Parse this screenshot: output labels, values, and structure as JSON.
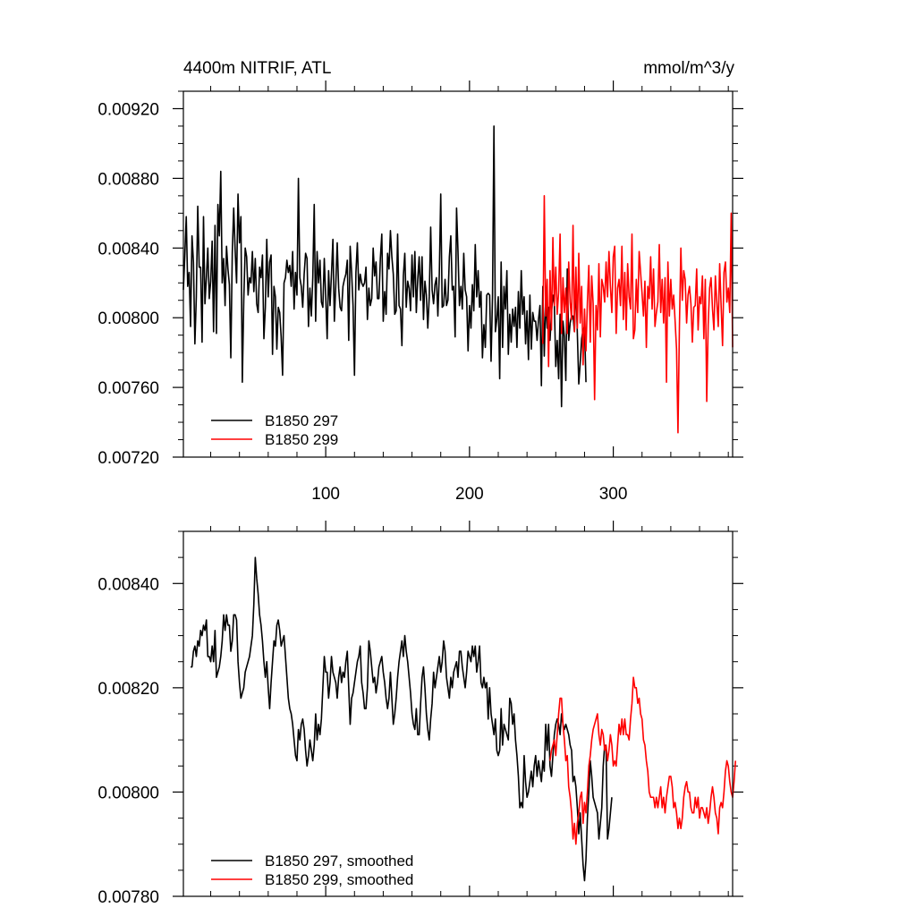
{
  "chart_data": [
    {
      "type": "line",
      "title_left": "4400m NITRIF, ATL",
      "title_right": "mmol/m^3/y",
      "xlabel": "",
      "ylabel": "",
      "xlim": [
        1,
        383
      ],
      "ylim": [
        0.0072,
        0.0093
      ],
      "xticks": [
        100,
        200,
        300
      ],
      "xtick_labels": [
        "100",
        "200",
        "300"
      ],
      "xtick_label_position": "top-of-bottom-axis-below",
      "yticks": [
        0.0072,
        0.0076,
        0.008,
        0.0084,
        0.0088,
        0.0092
      ],
      "ytick_labels": [
        "0.00720",
        "0.00760",
        "0.00800",
        "0.00840",
        "0.00880",
        "0.00920"
      ],
      "grid": false,
      "legend_position": "bottom-left",
      "series": [
        {
          "name": "B1850 297",
          "color": "#000000",
          "x_start": 1,
          "values": [
            0.00816,
            0.00836,
            0.00858,
            0.00818,
            0.00826,
            0.00795,
            0.00847,
            0.00832,
            0.00785,
            0.00812,
            0.00864,
            0.00829,
            0.00829,
            0.00786,
            0.00858,
            0.00808,
            0.00823,
            0.0084,
            0.00811,
            0.00821,
            0.00844,
            0.00792,
            0.00853,
            0.00791,
            0.00865,
            0.00847,
            0.00884,
            0.0082,
            0.00834,
            0.00807,
            0.00841,
            0.00828,
            0.00819,
            0.00777,
            0.00837,
            0.00863,
            0.00839,
            0.0082,
            0.00871,
            0.00843,
            0.00858,
            0.00763,
            0.0081,
            0.0084,
            0.00835,
            0.00813,
            0.00823,
            0.0082,
            0.00838,
            0.00815,
            0.00834,
            0.00808,
            0.00803,
            0.00829,
            0.00823,
            0.00836,
            0.00788,
            0.00806,
            0.00845,
            0.00812,
            0.00832,
            0.00836,
            0.00779,
            0.00818,
            0.00812,
            0.00782,
            0.00806,
            0.00803,
            0.00789,
            0.00767,
            0.0082,
            0.00823,
            0.00833,
            0.00826,
            0.0083,
            0.00818,
            0.00838,
            0.00805,
            0.00826,
            0.00813,
            0.0088,
            0.00823,
            0.00818,
            0.00806,
            0.00825,
            0.00837,
            0.00834,
            0.00795,
            0.00817,
            0.00801,
            0.00823,
            0.00865,
            0.00798,
            0.00838,
            0.0082,
            0.00833,
            0.00809,
            0.00806,
            0.00834,
            0.00812,
            0.00788,
            0.00827,
            0.00807,
            0.00825,
            0.00845,
            0.00798,
            0.00819,
            0.00843,
            0.00817,
            0.00806,
            0.00804,
            0.00818,
            0.00822,
            0.00825,
            0.00833,
            0.00787,
            0.00841,
            0.00826,
            0.00807,
            0.00767,
            0.00826,
            0.00843,
            0.00816,
            0.00825,
            0.0082,
            0.00818,
            0.0082,
            0.00829,
            0.00799,
            0.00817,
            0.00807,
            0.00811,
            0.0084,
            0.00824,
            0.00832,
            0.00811,
            0.00811,
            0.00834,
            0.00848,
            0.00798,
            0.00815,
            0.00802,
            0.00837,
            0.00828,
            0.0085,
            0.00835,
            0.00825,
            0.00802,
            0.00804,
            0.00848,
            0.00807,
            0.00805,
            0.00784,
            0.00824,
            0.00837,
            0.00806,
            0.00821,
            0.00817,
            0.00804,
            0.00836,
            0.00812,
            0.00838,
            0.00803,
            0.00822,
            0.00835,
            0.0081,
            0.00835,
            0.00799,
            0.00821,
            0.00813,
            0.00794,
            0.00812,
            0.00852,
            0.00816,
            0.00808,
            0.00819,
            0.00823,
            0.00801,
            0.00825,
            0.00871,
            0.00806,
            0.00807,
            0.00822,
            0.00807,
            0.0081,
            0.00835,
            0.00847,
            0.00816,
            0.00818,
            0.00789,
            0.00863,
            0.00838,
            0.00807,
            0.00818,
            0.00805,
            0.00837,
            0.00816,
            0.00812,
            0.00781,
            0.00807,
            0.00794,
            0.00819,
            0.00804,
            0.00842,
            0.00812,
            0.00827,
            0.00806,
            0.00815,
            0.00777,
            0.00796,
            0.00783,
            0.00813,
            0.00814,
            0.00813,
            0.00775,
            0.00812,
            0.0091,
            0.00792,
            0.00799,
            0.00812,
            0.00765,
            0.00832,
            0.00783,
            0.00818,
            0.00805,
            0.00827,
            0.00779,
            0.00802,
            0.00786,
            0.00805,
            0.00795,
            0.00806,
            0.00783,
            0.00815,
            0.00794,
            0.00827,
            0.00802,
            0.00812,
            0.00785,
            0.00804,
            0.00776,
            0.00813,
            0.00782,
            0.00803,
            0.00798,
            0.00798,
            0.00787,
            0.00799,
            0.00807,
            0.00761,
            0.00818,
            0.00778,
            0.00812,
            0.00794,
            0.00806,
            0.00787,
            0.00803,
            0.00813,
            0.00808,
            0.00772,
            0.00787,
            0.00765,
            0.00802,
            0.00749,
            0.00798,
            0.00789,
            0.00764,
            0.00828,
            0.00787,
            0.00797,
            0.00801,
            0.00801,
            0.00792,
            0.0082,
            0.00791,
            0.00762,
            0.00774,
            0.00788,
            0.00793,
            0.00795,
            0.00763
          ]
        },
        {
          "name": "B1850 299",
          "color": "#ff0000",
          "x_start": 251,
          "values": [
            0.00785,
            0.0087,
            0.00801,
            0.00822,
            0.00772,
            0.00827,
            0.00793,
            0.00846,
            0.00807,
            0.00829,
            0.00802,
            0.00815,
            0.00848,
            0.00791,
            0.00823,
            0.00803,
            0.00817,
            0.00791,
            0.00832,
            0.00809,
            0.00799,
            0.00853,
            0.00792,
            0.00829,
            0.00794,
            0.00837,
            0.00797,
            0.00818,
            0.00773,
            0.00805,
            0.00781,
            0.00809,
            0.0083,
            0.00786,
            0.00824,
            0.00808,
            0.00753,
            0.00807,
            0.00793,
            0.00831,
            0.00789,
            0.00822,
            0.00818,
            0.00809,
            0.00832,
            0.00812,
            0.00838,
            0.00818,
            0.00803,
            0.00835,
            0.00841,
            0.00791,
            0.00817,
            0.00822,
            0.00807,
            0.00841,
            0.00799,
            0.00826,
            0.00793,
            0.00831,
            0.00812,
            0.00805,
            0.00848,
            0.00788,
            0.00793,
            0.00822,
            0.00803,
            0.00838,
            0.00826,
            0.00814,
            0.00801,
            0.00821,
            0.00783,
            0.00818,
            0.00811,
            0.00835,
            0.00805,
            0.00828,
            0.00795,
            0.00803,
            0.00809,
            0.00842,
            0.00803,
            0.00822,
            0.00797,
            0.00823,
            0.00763,
            0.00832,
            0.00801,
            0.00822,
            0.00805,
            0.00813,
            0.00798,
            0.00782,
            0.00734,
            0.00795,
            0.0084,
            0.0081,
            0.00827,
            0.00822,
            0.00797,
            0.00813,
            0.00818,
            0.00808,
            0.00786,
            0.00806,
            0.00807,
            0.00828,
            0.00793,
            0.00812,
            0.00808,
            0.00824,
            0.00788,
            0.00822,
            0.00752,
            0.00796,
            0.00817,
            0.00823,
            0.00805,
            0.00793,
            0.00824,
            0.00809,
            0.00795,
            0.00831,
            0.00807,
            0.00784,
            0.00826,
            0.00832,
            0.00809,
            0.00817,
            0.00803,
            0.0086,
            0.00783
          ]
        }
      ]
    },
    {
      "type": "line",
      "title_left": "",
      "title_right": "",
      "xlabel": "",
      "ylabel": "",
      "xlim": [
        1,
        383
      ],
      "ylim": [
        0.0078,
        0.0085
      ],
      "xticks": [
        100,
        200,
        300
      ],
      "xtick_labels": [],
      "yticks": [
        0.0078,
        0.008,
        0.0082,
        0.0084
      ],
      "ytick_labels": [
        "0.00780",
        "0.00800",
        "0.00820",
        "0.00840"
      ],
      "grid": false,
      "legend_position": "bottom-left",
      "series": [
        {
          "name": "B1850 297, smoothed",
          "color": "#000000",
          "x_start": 6,
          "values": [
            0.00824,
            0.00824,
            0.00827,
            0.00828,
            0.00826,
            0.00829,
            0.00828,
            0.00831,
            0.0083,
            0.00832,
            0.00831,
            0.00833,
            0.00826,
            0.00826,
            0.00825,
            0.00828,
            0.00825,
            0.00831,
            0.00822,
            0.00823,
            0.00824,
            0.00826,
            0.00829,
            0.00834,
            0.00831,
            0.00834,
            0.00832,
            0.00832,
            0.00827,
            0.00829,
            0.00834,
            0.00834,
            0.00833,
            0.00825,
            0.00821,
            0.00818,
            0.00819,
            0.0082,
            0.00823,
            0.00824,
            0.00825,
            0.00826,
            0.00828,
            0.0083,
            0.00836,
            0.00845,
            0.00841,
            0.00838,
            0.00834,
            0.00832,
            0.00829,
            0.00825,
            0.00822,
            0.00825,
            0.0082,
            0.00816,
            0.00821,
            0.00825,
            0.00829,
            0.00828,
            0.00832,
            0.00833,
            0.00831,
            0.00828,
            0.00829,
            0.0083,
            0.00826,
            0.00822,
            0.00818,
            0.00816,
            0.00815,
            0.00813,
            0.0081,
            0.00807,
            0.00806,
            0.00812,
            0.0081,
            0.00813,
            0.00814,
            0.00812,
            0.00808,
            0.00805,
            0.00807,
            0.0081,
            0.00808,
            0.00806,
            0.00809,
            0.00815,
            0.0081,
            0.00813,
            0.00811,
            0.00814,
            0.0082,
            0.00826,
            0.00823,
            0.00823,
            0.00818,
            0.00821,
            0.00826,
            0.00823,
            0.00822,
            0.00821,
            0.00818,
            0.00822,
            0.00824,
            0.00821,
            0.00823,
            0.00822,
            0.00825,
            0.00827,
            0.0082,
            0.00813,
            0.00818,
            0.00819,
            0.00821,
            0.00823,
            0.00825,
            0.00826,
            0.00828,
            0.00821,
            0.00819,
            0.00816,
            0.00816,
            0.0082,
            0.00829,
            0.00827,
            0.00824,
            0.00821,
            0.00822,
            0.00819,
            0.00821,
            0.00824,
            0.00825,
            0.00826,
            0.00823,
            0.00821,
            0.00818,
            0.00816,
            0.00818,
            0.00823,
            0.00818,
            0.00813,
            0.00815,
            0.00818,
            0.00822,
            0.00825,
            0.00827,
            0.00829,
            0.00826,
            0.0083,
            0.00827,
            0.00825,
            0.00822,
            0.00819,
            0.00815,
            0.00813,
            0.00812,
            0.00816,
            0.00811,
            0.00811,
            0.00817,
            0.00822,
            0.00824,
            0.0082,
            0.00815,
            0.00812,
            0.0081,
            0.00814,
            0.00817,
            0.00823,
            0.0082,
            0.00822,
            0.00824,
            0.00826,
            0.00823,
            0.00825,
            0.00829,
            0.00827,
            0.00822,
            0.0082,
            0.00818,
            0.00822,
            0.0082,
            0.00823,
            0.00824,
            0.00825,
            0.00822,
            0.00827,
            0.00827,
            0.00824,
            0.00822,
            0.0082,
            0.00823,
            0.00827,
            0.00826,
            0.00825,
            0.00828,
            0.00826,
            0.00828,
            0.00823,
            0.00825,
            0.00828,
            0.00821,
            0.0082,
            0.00822,
            0.0082,
            0.00821,
            0.00814,
            0.0082,
            0.00815,
            0.00813,
            0.00811,
            0.00814,
            0.00808,
            0.00807,
            0.00808,
            0.00816,
            0.00809,
            0.00813,
            0.00812,
            0.00811,
            0.0081,
            0.00818,
            0.00817,
            0.00813,
            0.00815,
            0.0081,
            0.00807,
            0.00803,
            0.00797,
            0.00798,
            0.00797,
            0.00807,
            0.00802,
            0.00799,
            0.008,
            0.00802,
            0.00804,
            0.00801,
            0.00805,
            0.00807,
            0.00803,
            0.00806,
            0.00804,
            0.00802,
            0.00806,
            0.00804,
            0.00813,
            0.00808,
            0.00813,
            0.00805,
            0.00803,
            0.00807,
            0.00811,
            0.00813,
            0.00814,
            0.00813,
            0.00811,
            0.00815,
            0.00813,
            0.00812,
            0.00813,
            0.00812,
            0.00811,
            0.00809,
            0.00808,
            0.00802,
            0.00803,
            0.00801,
            0.00797,
            0.00792,
            0.00796,
            0.00791,
            0.00786,
            0.00783,
            0.00787,
            0.00795,
            0.008,
            0.00806,
            0.00803,
            0.00799,
            0.00798,
            0.00797,
            0.00796,
            0.00791,
            0.00794,
            0.00797,
            0.00805,
            0.00809,
            0.00808,
            0.00791,
            0.00793,
            0.00796,
            0.00799
          ]
        },
        {
          "name": "B1850 299, smoothed",
          "color": "#ff0000",
          "x_start": 256,
          "values": [
            0.00806,
            0.00808,
            0.00809,
            0.0081,
            0.00807,
            0.00811,
            0.00815,
            0.00818,
            0.00818,
            0.00813,
            0.0081,
            0.00806,
            0.00807,
            0.00801,
            0.00799,
            0.00796,
            0.00791,
            0.00794,
            0.0079,
            0.00794,
            0.00796,
            0.00799,
            0.008,
            0.00794,
            0.00798,
            0.00796,
            0.008,
            0.00805,
            0.00807,
            0.0081,
            0.00812,
            0.00813,
            0.00814,
            0.00815,
            0.00811,
            0.00809,
            0.00812,
            0.00811,
            0.00808,
            0.00809,
            0.00806,
            0.00808,
            0.00811,
            0.00809,
            0.00805,
            0.00806,
            0.00805,
            0.00809,
            0.00813,
            0.00811,
            0.00814,
            0.00811,
            0.00814,
            0.00811,
            0.00811,
            0.0081,
            0.00814,
            0.00817,
            0.00822,
            0.0082,
            0.0082,
            0.00817,
            0.00818,
            0.00815,
            0.00814,
            0.0081,
            0.00809,
            0.00806,
            0.00804,
            0.008,
            0.00799,
            0.00799,
            0.00799,
            0.00797,
            0.00799,
            0.00797,
            0.00799,
            0.00801,
            0.00797,
            0.00799,
            0.00796,
            0.00799,
            0.00801,
            0.00803,
            0.00803,
            0.00801,
            0.00797,
            0.00798,
            0.00796,
            0.00793,
            0.00795,
            0.00793,
            0.00795,
            0.00799,
            0.00801,
            0.00802,
            0.008,
            0.008,
            0.00797,
            0.00796,
            0.00796,
            0.00799,
            0.00797,
            0.00799,
            0.00795,
            0.00797,
            0.00797,
            0.00796,
            0.00795,
            0.00797,
            0.00794,
            0.00796,
            0.00799,
            0.00801,
            0.00799,
            0.00796,
            0.00795,
            0.00792,
            0.00797,
            0.00798,
            0.00797,
            0.008,
            0.00804,
            0.00806,
            0.00805,
            0.00802,
            0.008,
            0.00799,
            0.00802,
            0.00806
          ]
        }
      ]
    }
  ]
}
